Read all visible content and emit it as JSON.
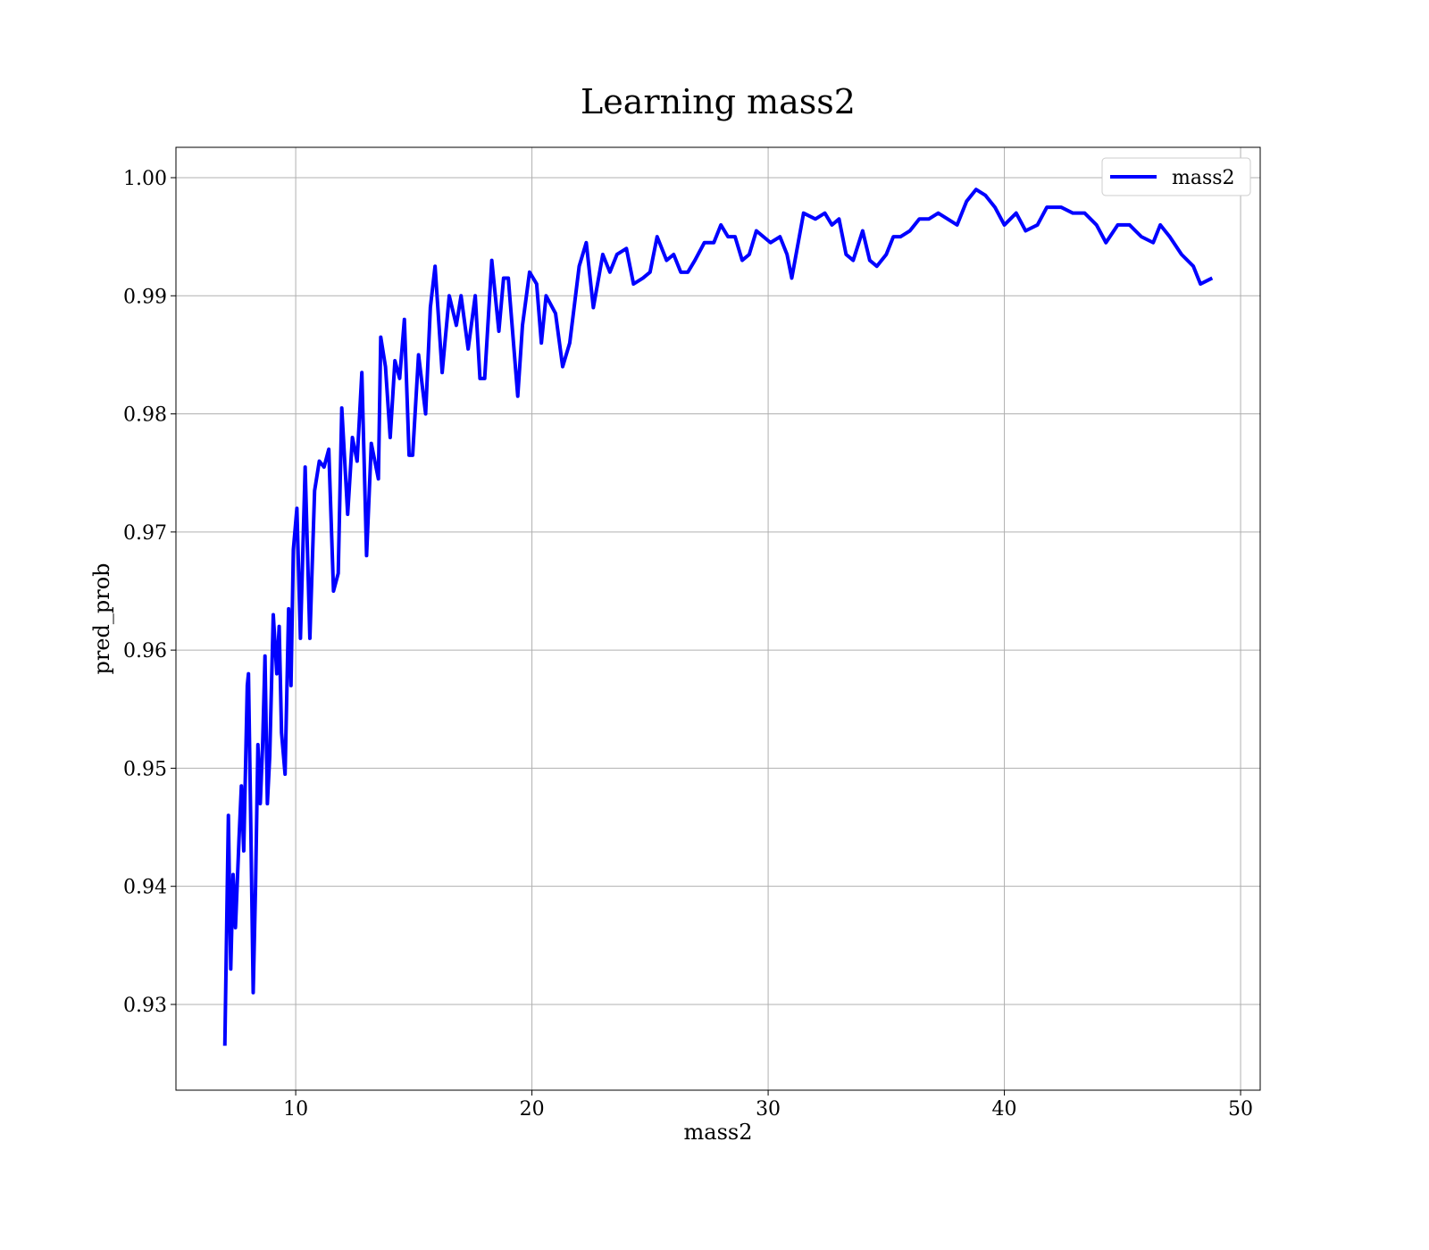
{
  "chart_data": {
    "type": "line",
    "title": "Learning mass2",
    "x_label": "mass2",
    "y_label": "pred_prob",
    "x": [
      7.0,
      7.1,
      7.15,
      7.25,
      7.35,
      7.45,
      7.6,
      7.7,
      7.8,
      7.95,
      8.0,
      8.1,
      8.2,
      8.3,
      8.4,
      8.5,
      8.6,
      8.7,
      8.8,
      8.9,
      9.05,
      9.2,
      9.3,
      9.4,
      9.55,
      9.7,
      9.8,
      9.9,
      10.05,
      10.2,
      10.4,
      10.6,
      10.8,
      11.0,
      11.2,
      11.4,
      11.6,
      11.8,
      11.95,
      12.2,
      12.4,
      12.6,
      12.8,
      13.0,
      13.2,
      13.5,
      13.6,
      13.8,
      14.0,
      14.2,
      14.4,
      14.6,
      14.8,
      14.95,
      15.2,
      15.5,
      15.7,
      15.9,
      16.2,
      16.5,
      16.8,
      17.0,
      17.3,
      17.6,
      17.8,
      18.0,
      18.3,
      18.6,
      18.8,
      19.0,
      19.2,
      19.4,
      19.6,
      19.9,
      20.2,
      20.4,
      20.6,
      21.0,
      21.3,
      21.6,
      22.0,
      22.3,
      22.6,
      23.0,
      23.3,
      23.6,
      24.0,
      24.3,
      24.7,
      25.0,
      25.3,
      25.7,
      26.0,
      26.3,
      26.6,
      26.9,
      27.3,
      27.7,
      28.0,
      28.3,
      28.6,
      28.9,
      29.2,
      29.5,
      29.8,
      30.1,
      30.5,
      30.8,
      31.0,
      31.5,
      32.0,
      32.4,
      32.7,
      33.0,
      33.3,
      33.6,
      34.0,
      34.3,
      34.6,
      35.0,
      35.3,
      35.6,
      36.0,
      36.4,
      36.8,
      37.2,
      37.6,
      38.0,
      38.4,
      38.8,
      39.2,
      39.6,
      40.0,
      40.5,
      40.9,
      41.4,
      41.8,
      42.4,
      42.9,
      43.4,
      43.9,
      44.3,
      44.8,
      45.3,
      45.8,
      46.3,
      46.6,
      47.0,
      47.5,
      48.0,
      48.3,
      48.8
    ],
    "series": [
      {
        "name": "mass2",
        "color": "#0000ff",
        "values": [
          0.9265,
          0.9395,
          0.946,
          0.933,
          0.941,
          0.9365,
          0.944,
          0.9485,
          0.943,
          0.957,
          0.958,
          0.945,
          0.931,
          0.94,
          0.952,
          0.947,
          0.952,
          0.9595,
          0.947,
          0.951,
          0.963,
          0.958,
          0.962,
          0.953,
          0.9495,
          0.9635,
          0.957,
          0.9685,
          0.972,
          0.961,
          0.9755,
          0.961,
          0.9735,
          0.976,
          0.9755,
          0.977,
          0.965,
          0.9665,
          0.9805,
          0.9715,
          0.978,
          0.976,
          0.9835,
          0.968,
          0.9775,
          0.9745,
          0.9865,
          0.984,
          0.978,
          0.9845,
          0.983,
          0.988,
          0.9765,
          0.9765,
          0.985,
          0.98,
          0.989,
          0.9925,
          0.9835,
          0.99,
          0.9875,
          0.99,
          0.9855,
          0.99,
          0.983,
          0.983,
          0.993,
          0.987,
          0.9915,
          0.9915,
          0.9865,
          0.9815,
          0.9875,
          0.992,
          0.991,
          0.986,
          0.99,
          0.9885,
          0.984,
          0.986,
          0.9925,
          0.9945,
          0.989,
          0.9935,
          0.992,
          0.9935,
          0.994,
          0.991,
          0.9915,
          0.992,
          0.995,
          0.993,
          0.9935,
          0.992,
          0.992,
          0.993,
          0.9945,
          0.9945,
          0.996,
          0.995,
          0.995,
          0.993,
          0.9935,
          0.9955,
          0.995,
          0.9945,
          0.995,
          0.9935,
          0.9915,
          0.997,
          0.9965,
          0.997,
          0.996,
          0.9965,
          0.9935,
          0.993,
          0.9955,
          0.993,
          0.9925,
          0.9935,
          0.995,
          0.995,
          0.9955,
          0.9965,
          0.9965,
          0.997,
          0.9965,
          0.996,
          0.998,
          0.999,
          0.9985,
          0.9975,
          0.996,
          0.997,
          0.9955,
          0.996,
          0.9975,
          0.9975,
          0.997,
          0.997,
          0.996,
          0.9945,
          0.996,
          0.996,
          0.995,
          0.9945,
          0.996,
          0.995,
          0.9935,
          0.9925,
          0.991,
          0.9915
        ]
      }
    ],
    "xlim": [
      4.93,
      50.83
    ],
    "ylim": [
      0.92274,
      1.00257
    ],
    "xticks": [
      10,
      20,
      30,
      40,
      50
    ],
    "yticks": [
      0.93,
      0.94,
      0.95,
      0.96,
      0.97,
      0.98,
      0.99,
      {
        "value": 1,
        "label": "1.00"
      }
    ],
    "grid": true,
    "legend": "upper right"
  }
}
